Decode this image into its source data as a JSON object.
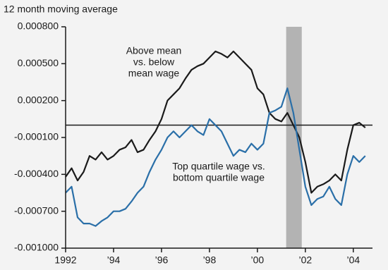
{
  "chart_data": {
    "type": "line",
    "y_axis_label": "12 month moving average",
    "x": [
      1992.0,
      1992.25,
      1992.5,
      1992.75,
      1993.0,
      1993.25,
      1993.5,
      1993.75,
      1994.0,
      1994.25,
      1994.5,
      1994.75,
      1995.0,
      1995.25,
      1995.5,
      1995.75,
      1996.0,
      1996.25,
      1996.5,
      1996.75,
      1997.0,
      1997.25,
      1997.5,
      1997.75,
      1998.0,
      1998.25,
      1998.5,
      1998.75,
      1999.0,
      1999.25,
      1999.5,
      1999.75,
      2000.0,
      2000.25,
      2000.5,
      2000.75,
      2001.0,
      2001.25,
      2001.5,
      2001.75,
      2002.0,
      2002.25,
      2002.5,
      2002.75,
      2003.0,
      2003.25,
      2003.5,
      2003.75,
      2004.0,
      2004.25,
      2004.5
    ],
    "series": [
      {
        "name": "Above mean vs. below mean wage",
        "color": "#1a1a1a",
        "values": [
          -0.00042,
          -0.00035,
          -0.00045,
          -0.00038,
          -0.00025,
          -0.00028,
          -0.00022,
          -0.00028,
          -0.00025,
          -0.0002,
          -0.00018,
          -0.00012,
          -0.00022,
          -0.0002,
          -0.00012,
          -5e-05,
          5e-05,
          0.0002,
          0.00025,
          0.0003,
          0.00038,
          0.00045,
          0.00048,
          0.0005,
          0.00055,
          0.0006,
          0.00058,
          0.00055,
          0.0006,
          0.00055,
          0.0005,
          0.00045,
          0.0003,
          0.00025,
          0.0001,
          5e-05,
          3e-05,
          0.0001,
          0.0,
          -0.0001,
          -0.0003,
          -0.00055,
          -0.0005,
          -0.00048,
          -0.00045,
          -0.0004,
          -0.00045,
          -0.0002,
          0.0,
          2e-05,
          -2e-05
        ]
      },
      {
        "name": "Top quartile wage vs. bottom quartile wage",
        "color": "#2a6fa8",
        "values": [
          -0.00055,
          -0.0005,
          -0.00075,
          -0.0008,
          -0.0008,
          -0.00082,
          -0.00078,
          -0.00075,
          -0.0007,
          -0.0007,
          -0.00068,
          -0.00062,
          -0.00055,
          -0.0005,
          -0.00038,
          -0.00028,
          -0.0002,
          -0.0001,
          -5e-05,
          -0.0001,
          -5e-05,
          0.0,
          -5e-05,
          -8e-05,
          5e-05,
          0.0,
          -5e-05,
          -0.00015,
          -0.00025,
          -0.0002,
          -0.00022,
          -0.00015,
          -0.0002,
          -0.00015,
          0.0001,
          0.00012,
          0.00015,
          0.0003,
          0.0001,
          -0.0002,
          -0.0005,
          -0.00065,
          -0.0006,
          -0.00058,
          -0.0005,
          -0.0006,
          -0.00065,
          -0.0004,
          -0.00025,
          -0.0003,
          -0.00025
        ]
      }
    ],
    "annotations": [
      {
        "lines": [
          "Above mean",
          "vs. below",
          "mean wage"
        ]
      },
      {
        "lines": [
          "Top quartile wage vs.",
          "bottom quartile wage"
        ]
      }
    ],
    "xlim": [
      1992,
      2004.8
    ],
    "xticks": [
      1992,
      {
        "value": 1994,
        "label": "’94"
      },
      {
        "value": 1996,
        "label": "’96"
      },
      {
        "value": 1998,
        "label": "’98"
      },
      {
        "value": 2000,
        "label": "’00"
      },
      {
        "value": 2002,
        "label": "’02"
      },
      {
        "value": 2004,
        "label": "’04"
      }
    ],
    "ylim": [
      -0.001,
      0.0008
    ],
    "yticks": [
      {
        "value": 0.0008,
        "label": "0.000800"
      },
      {
        "value": 0.0005,
        "label": "0.000500"
      },
      {
        "value": 0.0002,
        "label": "0.000200"
      },
      {
        "value": -0.0001,
        "label": "-0.000100"
      },
      {
        "value": -0.0004,
        "label": "-0.000400"
      },
      {
        "value": -0.0007,
        "label": "-0.000700"
      },
      {
        "value": -0.001,
        "label": "-0.001000"
      }
    ],
    "reference_line": 0,
    "shaded_region": [
      2001.2,
      2001.85
    ],
    "shade_color": "#b3b3b3"
  }
}
